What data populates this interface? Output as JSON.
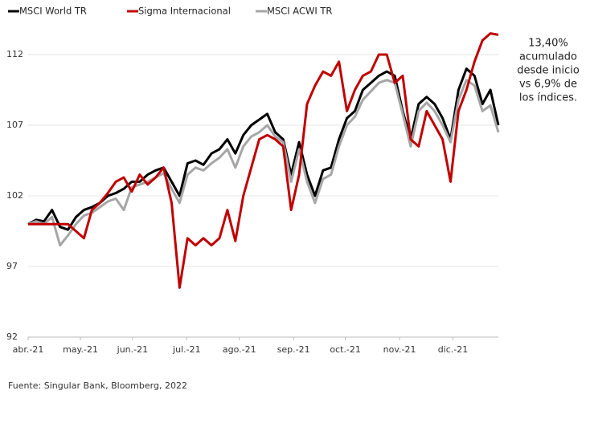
{
  "chart_data": {
    "type": "line",
    "series": [
      {
        "name": "MSCI World TR",
        "color": "#000000",
        "values": [
          100,
          100.3,
          100.2,
          101,
          99.8,
          99.6,
          100.5,
          101,
          101.2,
          101.5,
          102,
          102.2,
          102.5,
          103,
          103,
          103.5,
          103.8,
          104,
          103,
          102,
          104.3,
          104.5,
          104.2,
          105,
          105.3,
          106,
          105,
          106.3,
          107,
          107.4,
          107.8,
          106.5,
          106,
          103.5,
          105.8,
          103.5,
          102,
          103.8,
          104,
          106,
          107.5,
          108,
          109.5,
          110,
          110.5,
          110.8,
          110.5,
          108,
          106,
          108.5,
          109,
          108.5,
          107.5,
          106,
          109.5,
          111,
          110.5,
          108.5,
          109.5,
          107
        ]
      },
      {
        "name": "Sigma Internacional",
        "color": "#c00000",
        "values": [
          100,
          100,
          100,
          100,
          100,
          100,
          99.5,
          99,
          101,
          101.5,
          102.2,
          103,
          103.3,
          102.3,
          103.5,
          102.8,
          103.3,
          104,
          101.5,
          95.5,
          99,
          98.5,
          99,
          98.5,
          99,
          101,
          98.8,
          102,
          104,
          106,
          106.3,
          106,
          105.5,
          101,
          103.5,
          108.5,
          109.8,
          110.8,
          110.5,
          111.5,
          108,
          109.5,
          110.5,
          110.8,
          112,
          112,
          110,
          110.5,
          106,
          105.5,
          108,
          107,
          106,
          103,
          108,
          109.5,
          111.5,
          113,
          113.5,
          113.4
        ]
      },
      {
        "name": "MSCI ACWI TR",
        "color": "#a6a6a6",
        "values": [
          100,
          100.2,
          100,
          100.5,
          98.5,
          99.2,
          100,
          100.6,
          100.8,
          101.2,
          101.6,
          101.8,
          101,
          102.6,
          102.8,
          103,
          103.3,
          103.6,
          102.5,
          101.5,
          103.5,
          104,
          103.8,
          104.3,
          104.7,
          105.3,
          104,
          105.5,
          106.2,
          106.5,
          107,
          106.2,
          105.8,
          103,
          105.3,
          103,
          101.5,
          103.2,
          103.5,
          105.5,
          107,
          107.6,
          108.8,
          109.4,
          110,
          110.2,
          110,
          107.8,
          105.5,
          108,
          108.6,
          108,
          107,
          105.8,
          108.8,
          110.2,
          109.8,
          108,
          108.4,
          106.5
        ]
      }
    ],
    "xlim": [
      0,
      59
    ],
    "xticks": [
      {
        "value": 0,
        "label": "abr.-21"
      },
      {
        "value": 6.56,
        "label": "may.-21"
      },
      {
        "value": 13.1,
        "label": "jun.-21"
      },
      {
        "value": 19.9,
        "label": "jul.-21"
      },
      {
        "value": 26.5,
        "label": "ago.-21"
      },
      {
        "value": 33.3,
        "label": "sep.-21"
      },
      {
        "value": 39.8,
        "label": "oct.-21"
      },
      {
        "value": 46.6,
        "label": "nov.-21"
      },
      {
        "value": 53.3,
        "label": "dic.-21"
      }
    ],
    "ylim": [
      92,
      114.5
    ],
    "yticks": [
      92,
      97,
      102,
      107,
      112
    ],
    "grid": true,
    "annotation": [
      "13,40%",
      "acumulado",
      "desde inicio",
      "vs 6,9% de",
      "los índices."
    ],
    "source": "Fuente: Singular Bank, Bloomberg, 2022"
  }
}
